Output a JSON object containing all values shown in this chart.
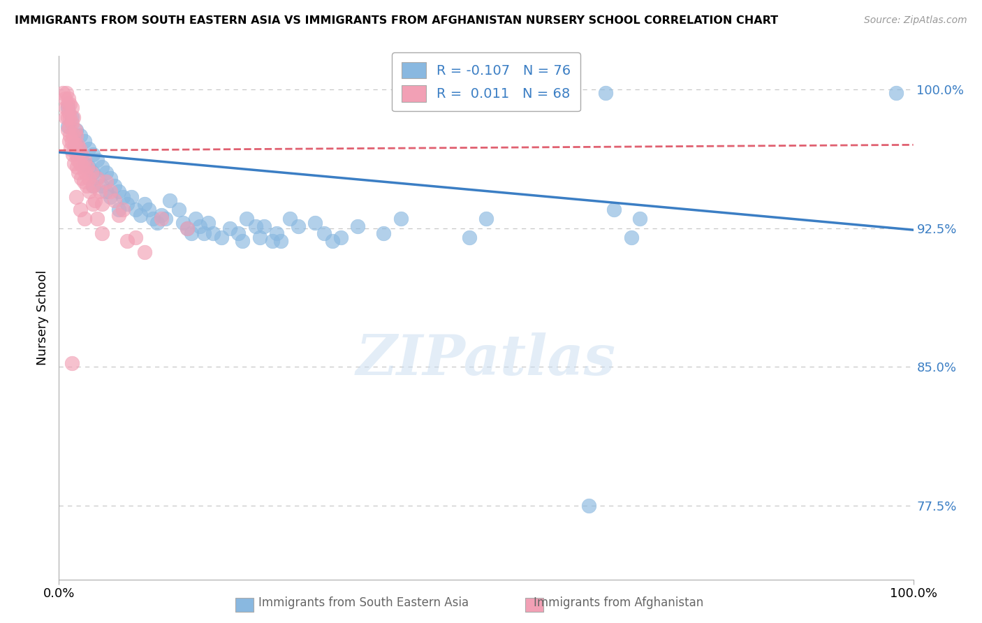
{
  "title": "IMMIGRANTS FROM SOUTH EASTERN ASIA VS IMMIGRANTS FROM AFGHANISTAN NURSERY SCHOOL CORRELATION CHART",
  "source": "Source: ZipAtlas.com",
  "ylabel": "Nursery School",
  "legend_label_1": "Immigrants from South Eastern Asia",
  "legend_label_2": "Immigrants from Afghanistan",
  "r1": -0.107,
  "n1": 76,
  "r2": 0.011,
  "n2": 68,
  "xlim": [
    0.0,
    1.0
  ],
  "ylim": [
    0.735,
    1.018
  ],
  "yticks": [
    0.775,
    0.85,
    0.925,
    1.0
  ],
  "ytick_labels": [
    "77.5%",
    "85.0%",
    "92.5%",
    "100.0%"
  ],
  "xtick_labels": [
    "0.0%",
    "100.0%"
  ],
  "color_blue": "#89B8E0",
  "color_pink": "#F2A0B5",
  "trendline_blue": "#3B7EC4",
  "trendline_pink": "#E06070",
  "blue_scatter": [
    [
      0.01,
      0.99
    ],
    [
      0.01,
      0.98
    ],
    [
      0.015,
      0.985
    ],
    [
      0.02,
      0.978
    ],
    [
      0.02,
      0.97
    ],
    [
      0.025,
      0.975
    ],
    [
      0.025,
      0.965
    ],
    [
      0.03,
      0.972
    ],
    [
      0.03,
      0.96
    ],
    [
      0.035,
      0.968
    ],
    [
      0.035,
      0.958
    ],
    [
      0.04,
      0.965
    ],
    [
      0.04,
      0.955
    ],
    [
      0.04,
      0.948
    ],
    [
      0.045,
      0.962
    ],
    [
      0.045,
      0.952
    ],
    [
      0.05,
      0.958
    ],
    [
      0.05,
      0.948
    ],
    [
      0.055,
      0.955
    ],
    [
      0.055,
      0.945
    ],
    [
      0.06,
      0.952
    ],
    [
      0.06,
      0.942
    ],
    [
      0.065,
      0.948
    ],
    [
      0.07,
      0.945
    ],
    [
      0.07,
      0.935
    ],
    [
      0.075,
      0.942
    ],
    [
      0.08,
      0.938
    ],
    [
      0.085,
      0.942
    ],
    [
      0.09,
      0.935
    ],
    [
      0.095,
      0.932
    ],
    [
      0.1,
      0.938
    ],
    [
      0.105,
      0.935
    ],
    [
      0.11,
      0.93
    ],
    [
      0.115,
      0.928
    ],
    [
      0.12,
      0.932
    ],
    [
      0.125,
      0.93
    ],
    [
      0.13,
      0.94
    ],
    [
      0.14,
      0.935
    ],
    [
      0.145,
      0.928
    ],
    [
      0.15,
      0.925
    ],
    [
      0.155,
      0.922
    ],
    [
      0.16,
      0.93
    ],
    [
      0.165,
      0.926
    ],
    [
      0.17,
      0.922
    ],
    [
      0.175,
      0.928
    ],
    [
      0.18,
      0.922
    ],
    [
      0.19,
      0.92
    ],
    [
      0.2,
      0.925
    ],
    [
      0.21,
      0.922
    ],
    [
      0.215,
      0.918
    ],
    [
      0.22,
      0.93
    ],
    [
      0.23,
      0.926
    ],
    [
      0.235,
      0.92
    ],
    [
      0.24,
      0.926
    ],
    [
      0.25,
      0.918
    ],
    [
      0.255,
      0.922
    ],
    [
      0.26,
      0.918
    ],
    [
      0.27,
      0.93
    ],
    [
      0.28,
      0.926
    ],
    [
      0.3,
      0.928
    ],
    [
      0.31,
      0.922
    ],
    [
      0.32,
      0.918
    ],
    [
      0.33,
      0.92
    ],
    [
      0.35,
      0.926
    ],
    [
      0.38,
      0.922
    ],
    [
      0.4,
      0.93
    ],
    [
      0.48,
      0.92
    ],
    [
      0.5,
      0.93
    ],
    [
      0.6,
      0.998
    ],
    [
      0.64,
      0.998
    ],
    [
      0.65,
      0.935
    ],
    [
      0.67,
      0.92
    ],
    [
      0.68,
      0.93
    ],
    [
      0.98,
      0.998
    ],
    [
      0.62,
      0.775
    ]
  ],
  "pink_scatter": [
    [
      0.005,
      0.998
    ],
    [
      0.007,
      0.995
    ],
    [
      0.008,
      0.99
    ],
    [
      0.008,
      0.985
    ],
    [
      0.009,
      0.998
    ],
    [
      0.01,
      0.992
    ],
    [
      0.01,
      0.985
    ],
    [
      0.01,
      0.978
    ],
    [
      0.011,
      0.995
    ],
    [
      0.011,
      0.988
    ],
    [
      0.012,
      0.98
    ],
    [
      0.012,
      0.972
    ],
    [
      0.013,
      0.992
    ],
    [
      0.013,
      0.985
    ],
    [
      0.013,
      0.975
    ],
    [
      0.014,
      0.968
    ],
    [
      0.015,
      0.99
    ],
    [
      0.015,
      0.982
    ],
    [
      0.015,
      0.972
    ],
    [
      0.016,
      0.965
    ],
    [
      0.017,
      0.985
    ],
    [
      0.017,
      0.975
    ],
    [
      0.018,
      0.968
    ],
    [
      0.018,
      0.96
    ],
    [
      0.019,
      0.978
    ],
    [
      0.019,
      0.97
    ],
    [
      0.02,
      0.975
    ],
    [
      0.02,
      0.965
    ],
    [
      0.021,
      0.958
    ],
    [
      0.022,
      0.97
    ],
    [
      0.022,
      0.962
    ],
    [
      0.023,
      0.955
    ],
    [
      0.024,
      0.968
    ],
    [
      0.025,
      0.96
    ],
    [
      0.026,
      0.952
    ],
    [
      0.027,
      0.965
    ],
    [
      0.028,
      0.958
    ],
    [
      0.029,
      0.95
    ],
    [
      0.03,
      0.962
    ],
    [
      0.031,
      0.955
    ],
    [
      0.032,
      0.948
    ],
    [
      0.033,
      0.958
    ],
    [
      0.035,
      0.952
    ],
    [
      0.036,
      0.945
    ],
    [
      0.038,
      0.955
    ],
    [
      0.04,
      0.948
    ],
    [
      0.042,
      0.94
    ],
    [
      0.045,
      0.952
    ],
    [
      0.048,
      0.945
    ],
    [
      0.05,
      0.938
    ],
    [
      0.055,
      0.95
    ],
    [
      0.06,
      0.945
    ],
    [
      0.065,
      0.94
    ],
    [
      0.07,
      0.932
    ],
    [
      0.075,
      0.935
    ],
    [
      0.02,
      0.942
    ],
    [
      0.025,
      0.935
    ],
    [
      0.03,
      0.93
    ],
    [
      0.04,
      0.938
    ],
    [
      0.045,
      0.93
    ],
    [
      0.05,
      0.922
    ],
    [
      0.08,
      0.918
    ],
    [
      0.09,
      0.92
    ],
    [
      0.1,
      0.912
    ],
    [
      0.015,
      0.852
    ],
    [
      0.12,
      0.93
    ],
    [
      0.15,
      0.925
    ]
  ],
  "watermark": "ZIPatlas",
  "background_color": "#FFFFFF",
  "grid_color": "#C8C8C8"
}
